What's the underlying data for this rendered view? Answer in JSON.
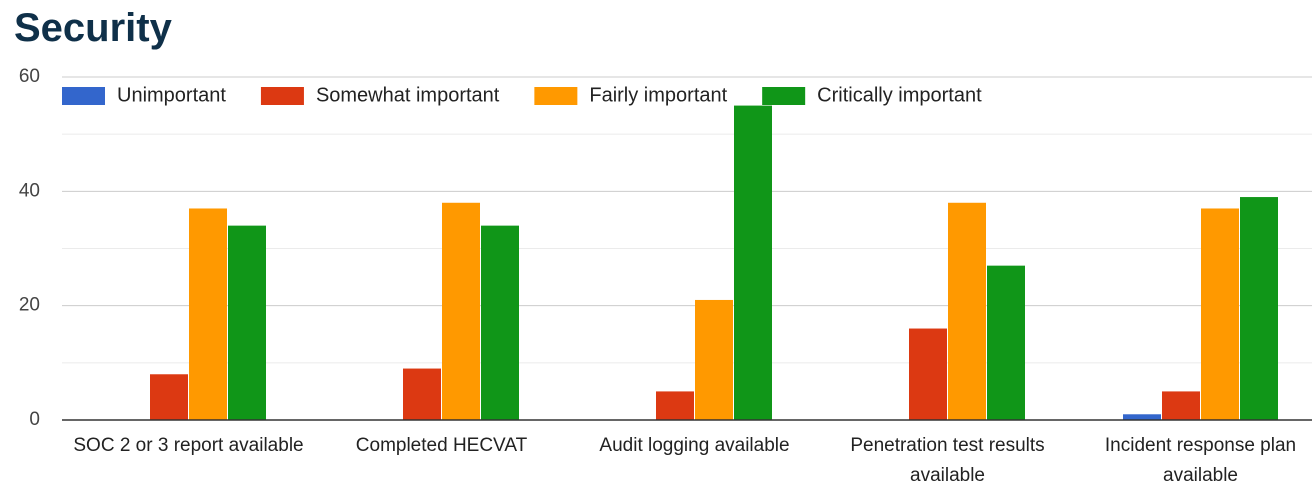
{
  "chart_data": {
    "type": "bar",
    "title": "Security",
    "categories": [
      "SOC 2 or 3 report available",
      "Completed HECVAT",
      "Audit logging available",
      "Penetration test results available",
      "Incident response plan available"
    ],
    "series": [
      {
        "name": "Unimportant",
        "color": "#3366cc",
        "values": [
          0,
          0,
          0,
          0,
          1
        ]
      },
      {
        "name": "Somewhat important",
        "color": "#dc3912",
        "values": [
          8,
          9,
          5,
          16,
          5
        ]
      },
      {
        "name": "Fairly important",
        "color": "#ff9900",
        "values": [
          37,
          38,
          21,
          38,
          37
        ]
      },
      {
        "name": "Critically important",
        "color": "#109618",
        "values": [
          34,
          34,
          55,
          27,
          39
        ]
      }
    ],
    "ylim": [
      0,
      60
    ],
    "yticks": [
      0,
      20,
      40,
      60
    ],
    "minor_yticks": [
      10,
      30,
      50
    ],
    "grid": true,
    "legend": "top"
  }
}
